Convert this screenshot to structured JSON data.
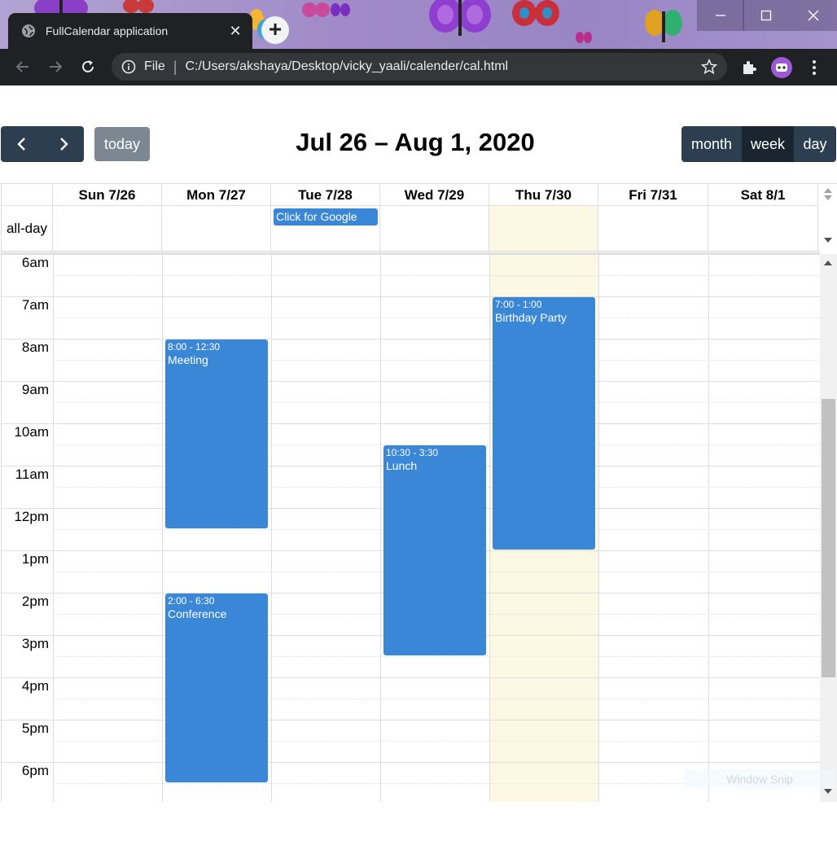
{
  "browser": {
    "tab_title": "FullCalendar application",
    "tab_close": "✕",
    "new_tab": "+",
    "protocol": "File",
    "separator": "|",
    "url": "C:/Users/akshaya/Desktop/vicky_yaali/calender/cal.html",
    "theme_color": "#a08bc8"
  },
  "calendar": {
    "title": "Jul 26 – Aug 1, 2020",
    "today_label": "today",
    "view_buttons": [
      {
        "label": "month",
        "active": false
      },
      {
        "label": "week",
        "active": true
      },
      {
        "label": "day",
        "active": false
      }
    ],
    "days": [
      "Sun 7/26",
      "Mon 7/27",
      "Tue 7/28",
      "Wed 7/29",
      "Thu 7/30",
      "Fri 7/31",
      "Sat 8/1"
    ],
    "today_day": "Thu 7/30",
    "allday_label": "all-day",
    "allday_event": {
      "title": "Click for Google",
      "day": "Tue 7/28"
    },
    "hours": [
      "6am",
      "7am",
      "8am",
      "9am",
      "10am",
      "11am",
      "12pm",
      "1pm",
      "2pm",
      "3pm",
      "4pm",
      "5pm",
      "6pm"
    ],
    "events": [
      {
        "time": "8:00 - 12:30",
        "title": "Meeting",
        "day": "Mon 7/27",
        "start_hour": 8.0,
        "end_hour": 12.5
      },
      {
        "time": "2:00 - 6:30",
        "title": "Conference",
        "day": "Mon 7/27",
        "start_hour": 14.0,
        "end_hour": 18.5
      },
      {
        "time": "10:30 - 3:30",
        "title": "Lunch",
        "day": "Wed 7/29",
        "start_hour": 10.5,
        "end_hour": 15.5
      },
      {
        "time": "7:00 - 1:00",
        "title": "Birthday Party",
        "day": "Thu 7/30",
        "start_hour": 7.0,
        "end_hour": 13.0
      }
    ],
    "event_color": "#3a87d8",
    "today_color": "#fcf8e3",
    "button_color": "#2c3e50"
  },
  "overlay": {
    "snip_label": "Window Snip"
  }
}
